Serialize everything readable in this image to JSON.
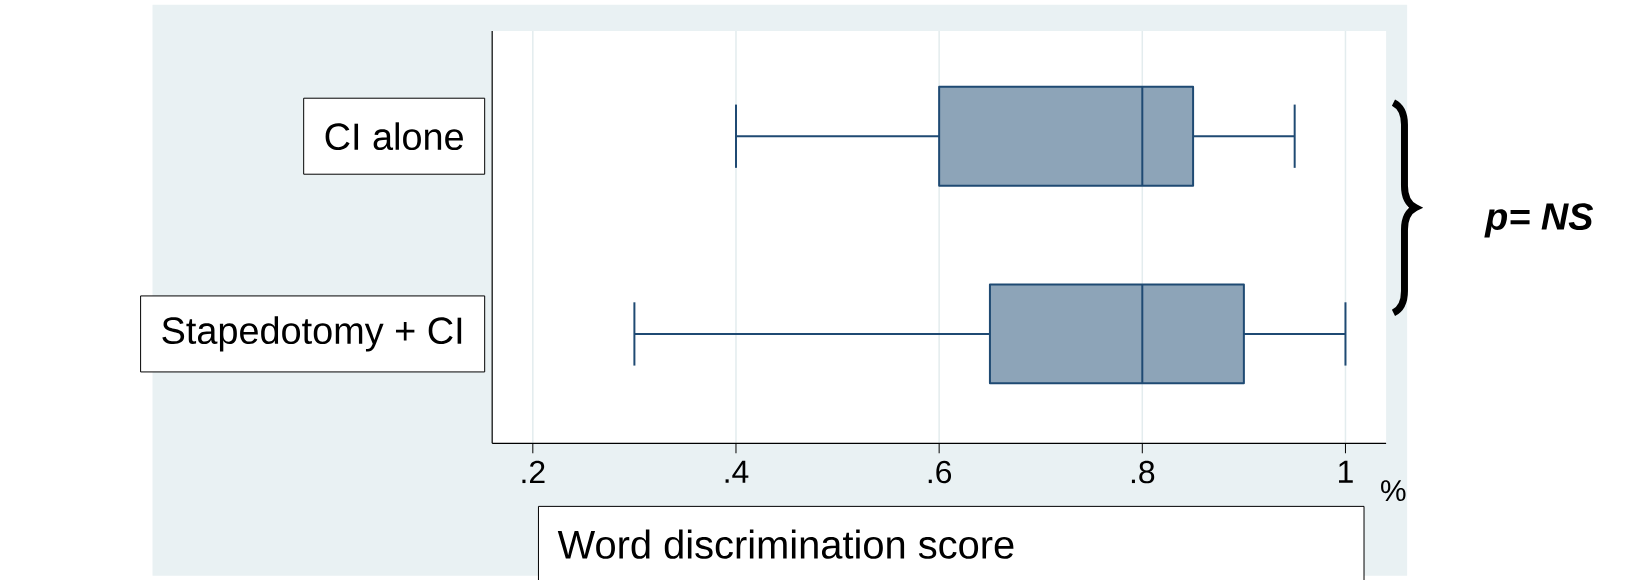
{
  "chart_data": {
    "type": "box",
    "orientation": "horizontal",
    "xlabel": "Word discrimination score",
    "categories": [
      "CI alone",
      "Stapedotomy + CI"
    ],
    "color": "#8da4b8",
    "boxes": [
      {
        "low": 0.4,
        "q1": 0.6,
        "median": 0.8,
        "q3": 0.85,
        "high": 0.95
      },
      {
        "low": 0.3,
        "q1": 0.65,
        "median": 0.8,
        "q3": 0.9,
        "high": 1
      }
    ],
    "xlim": [
      0.16,
      1.04
    ],
    "xticks": [
      {
        "value": 0.2,
        "label": ".2"
      },
      {
        "value": 0.4,
        "label": ".4"
      },
      {
        "value": 0.6,
        "label": ".6"
      },
      {
        "value": 0.8,
        "label": ".8"
      },
      1
    ],
    "grid": "x",
    "annotations": [
      "p= NS",
      "%"
    ]
  }
}
